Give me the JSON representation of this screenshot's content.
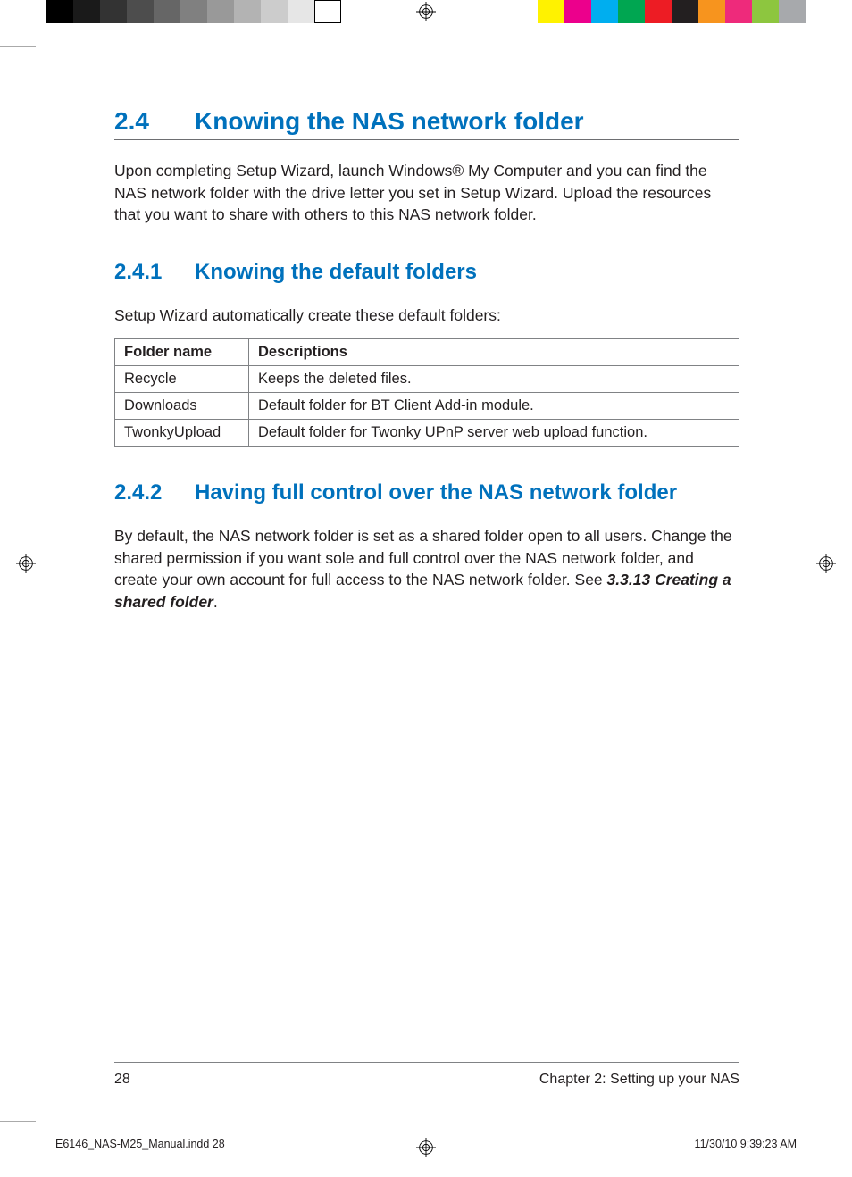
{
  "colorbars": {
    "left_gray": [
      "#000000",
      "#1a1a1a",
      "#333333",
      "#4d4d4d",
      "#666666",
      "#808080",
      "#999999",
      "#b3b3b3",
      "#cccccc",
      "#e6e6e6",
      "#ffffff"
    ],
    "right_cmyk": [
      "#fff200",
      "#ec008c",
      "#00aeef",
      "#00a651",
      "#ed1c24",
      "#231f20",
      "#f7941e",
      "#ee2a7b",
      "#8dc63f",
      "#a7a9ac"
    ]
  },
  "heading_color": "#0071bc",
  "text_color": "#231f20",
  "border_color": "#808285",
  "section": {
    "number": "2.4",
    "title": "Knowing the NAS network folder",
    "intro": "Upon completing Setup Wizard, launch Windows® My Computer and you can find the NAS network folder with the drive letter you set in Setup Wizard. Upload the resources that you want to share with others to this NAS network folder."
  },
  "sub1": {
    "number": "2.4.1",
    "title": "Knowing the default folders",
    "intro": "Setup Wizard automatically create these default folders:",
    "table": {
      "columns": [
        "Folder name",
        "Descriptions"
      ],
      "rows": [
        [
          "Recycle",
          "Keeps the deleted files."
        ],
        [
          "Downloads",
          "Default folder for BT Client Add-in module."
        ],
        [
          "TwonkyUpload",
          "Default folder for Twonky UPnP server web upload function."
        ]
      ]
    }
  },
  "sub2": {
    "number": "2.4.2",
    "title": "Having full control over the NAS network folder",
    "body_pre": "By default, the NAS network folder is set as a shared folder open to all users. Change the shared permission if you want sole and full control over the NAS network folder, and create your own account for full access to the NAS network folder. See ",
    "ref": "3.3.13 Creating a shared folder",
    "body_post": "."
  },
  "footer": {
    "page_number": "28",
    "chapter": "Chapter 2: Setting up your NAS"
  },
  "slug": {
    "file": "E6146_NAS-M25_Manual.indd   28",
    "timestamp": "11/30/10   9:39:23 AM"
  }
}
